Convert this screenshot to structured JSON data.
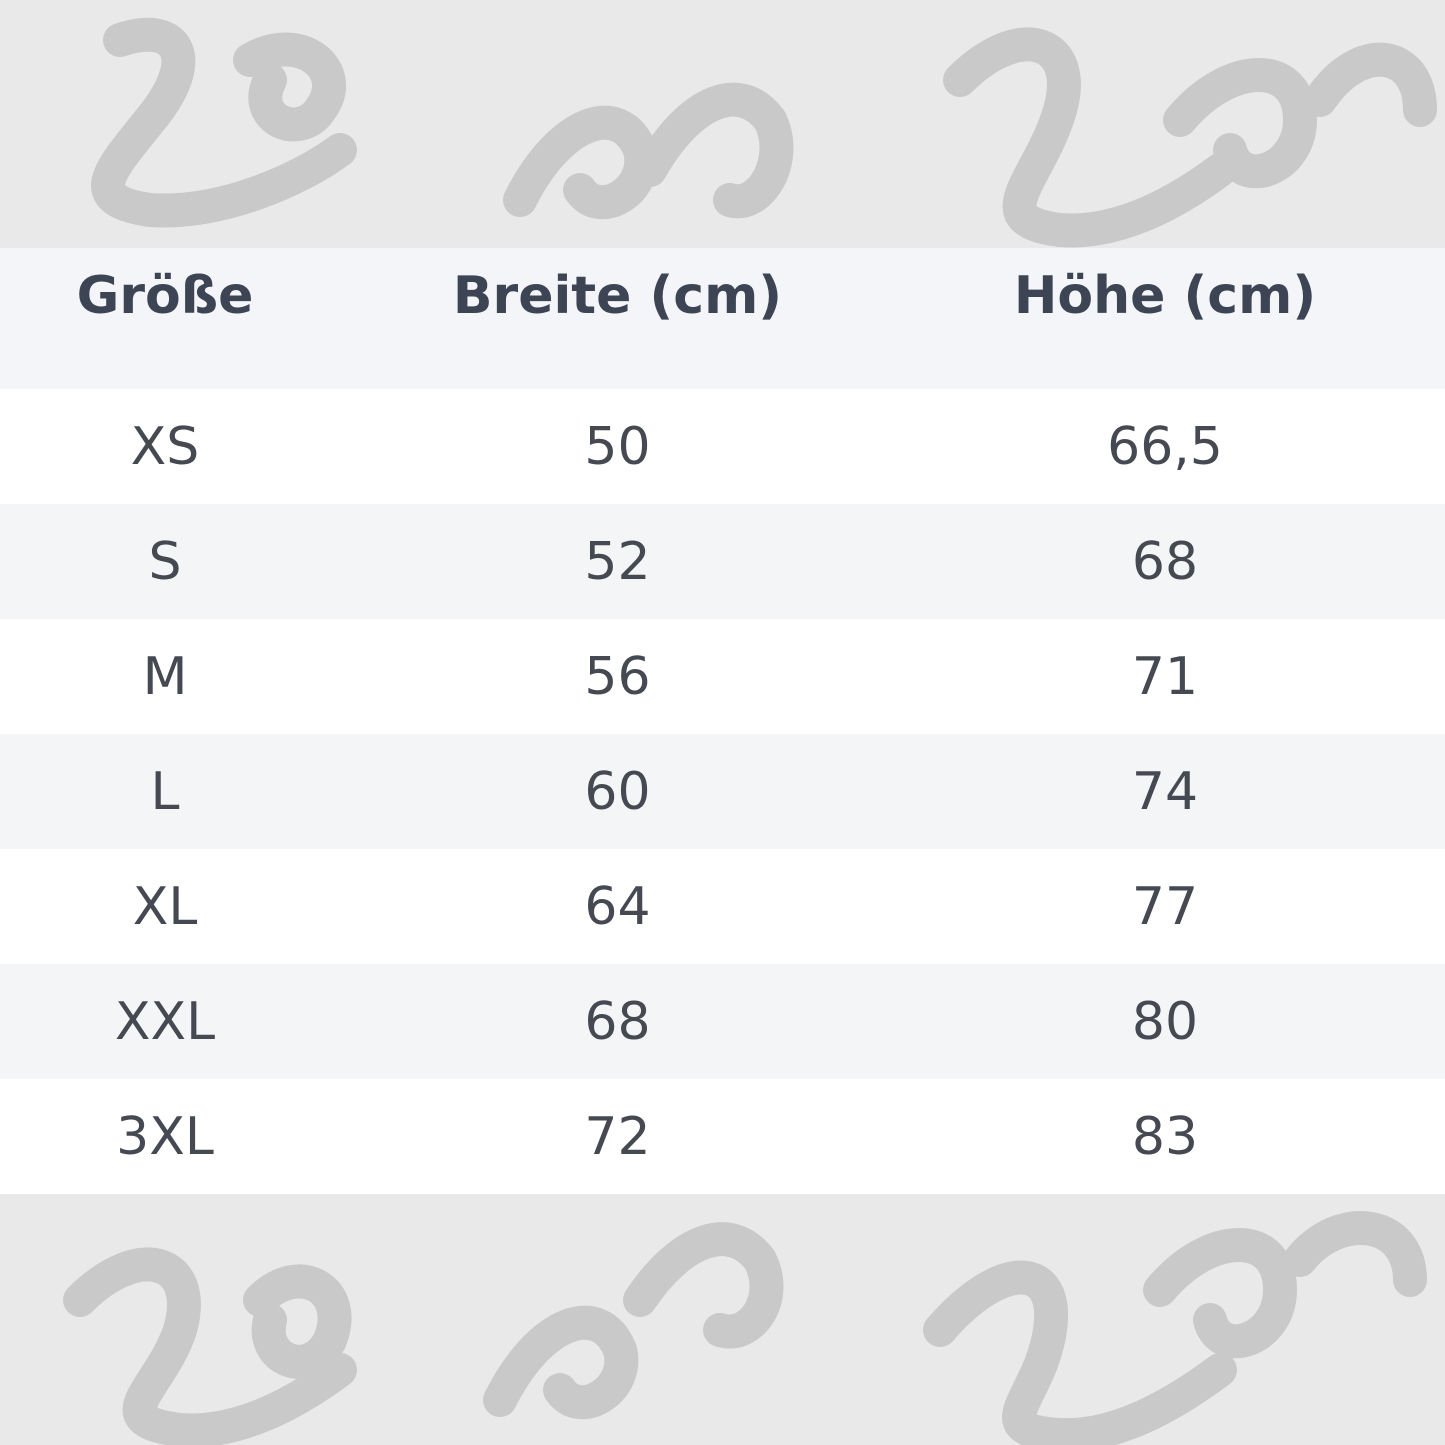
{
  "watermark": {
    "text": "Low and Lower"
  },
  "table": {
    "headers": [
      "Größe",
      "Breite (cm)",
      "Höhe (cm)"
    ],
    "rows": [
      [
        "XS",
        "50",
        "66,5"
      ],
      [
        "S",
        "52",
        "68"
      ],
      [
        "M",
        "56",
        "71"
      ],
      [
        "L",
        "60",
        "74"
      ],
      [
        "XL",
        "64",
        "77"
      ],
      [
        "XXL",
        "68",
        "80"
      ],
      [
        "3XL",
        "72",
        "83"
      ]
    ]
  }
}
